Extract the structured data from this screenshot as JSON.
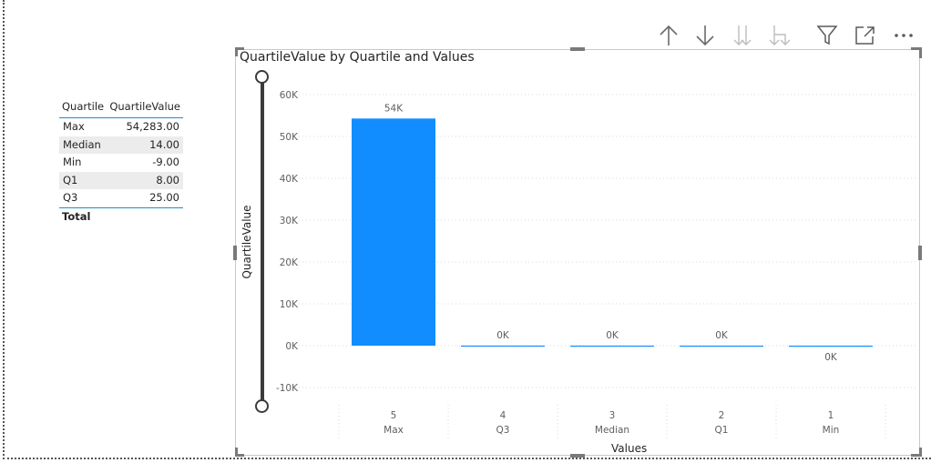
{
  "table": {
    "headers": [
      "Quartile",
      "QuartileValue"
    ],
    "rows": [
      {
        "quartile": "Max",
        "value": "54,283.00"
      },
      {
        "quartile": "Median",
        "value": "14.00"
      },
      {
        "quartile": "Min",
        "value": "-9.00"
      },
      {
        "quartile": "Q1",
        "value": "8.00"
      },
      {
        "quartile": "Q3",
        "value": "25.00"
      }
    ],
    "total_label": "Total"
  },
  "toolbar": {
    "icons": [
      "drill-up-icon",
      "drill-down-icon",
      "expand-all-down-icon",
      "expand-next-level-icon",
      "filter-icon",
      "focus-mode-icon",
      "more-options-icon"
    ]
  },
  "chart_data": {
    "type": "bar",
    "title": "QuartileValue by Quartile and Values",
    "xlabel": "Values",
    "ylabel": "QuartileValue",
    "categories": [
      {
        "value": "5",
        "quartile": "Max"
      },
      {
        "value": "4",
        "quartile": "Q3"
      },
      {
        "value": "3",
        "quartile": "Median"
      },
      {
        "value": "2",
        "quartile": "Q1"
      },
      {
        "value": "1",
        "quartile": "Min"
      }
    ],
    "values": [
      54283,
      25,
      14,
      8,
      -9
    ],
    "data_labels": [
      "54K",
      "0K",
      "0K",
      "0K",
      "0K"
    ],
    "yticks": [
      60000,
      50000,
      40000,
      30000,
      20000,
      10000,
      0,
      -10000
    ],
    "ytick_labels": [
      "60K",
      "50K",
      "40K",
      "30K",
      "20K",
      "10K",
      "0K",
      "-10K"
    ],
    "ylim": [
      -10000,
      60000
    ],
    "grid": true,
    "bar_color": "#118dff"
  }
}
